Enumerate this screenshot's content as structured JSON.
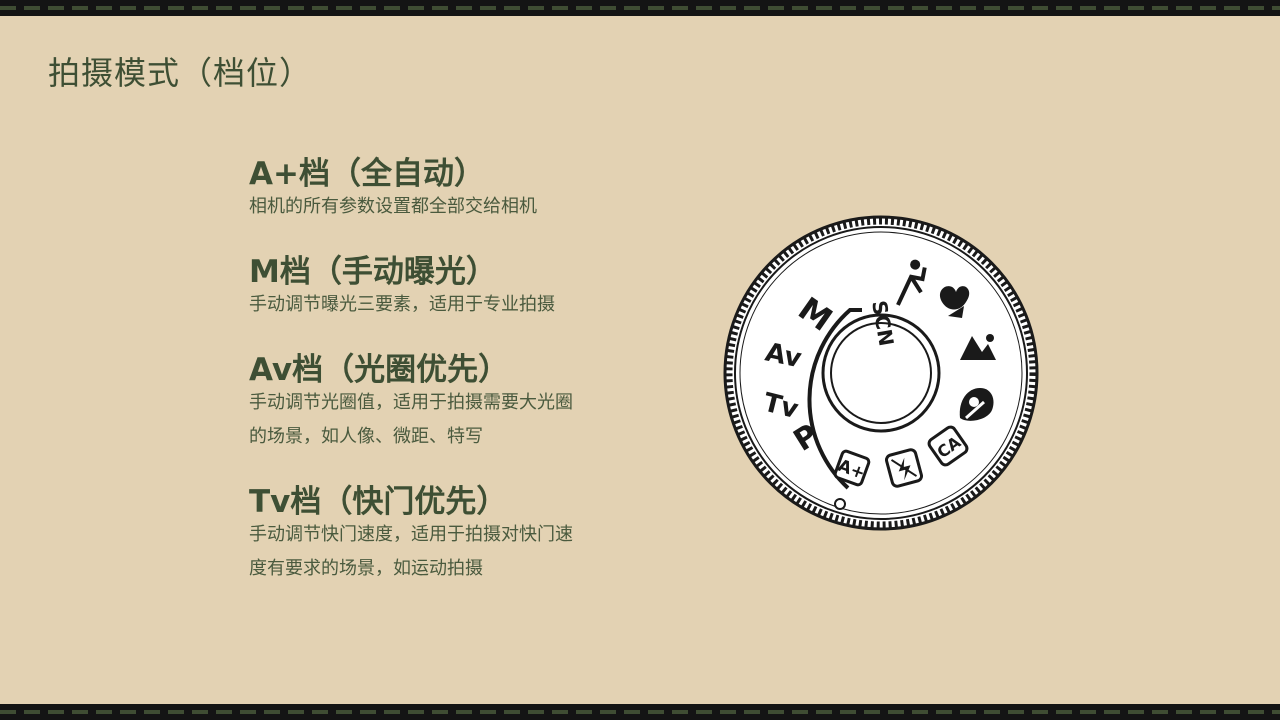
{
  "title": "拍摄模式（档位）",
  "modes": [
    {
      "name": "A+档（全自动）",
      "desc": "相机的所有参数设置都全部交给相机"
    },
    {
      "name": "M档（手动曝光）",
      "desc": "手动调节曝光三要素，适用于专业拍摄"
    },
    {
      "name": "Av档（光圈优先）",
      "desc": "手动调节光圈值，适用于拍摄需要大光圈的场景，如人像、微距、特写"
    },
    {
      "name": "Tv档（快门优先）",
      "desc": "手动调节快门速度，适用于拍摄对快门速度有要求的场景，如运动拍摄"
    }
  ],
  "dial": {
    "labels": {
      "p": "P",
      "tv": "Tv",
      "av": "Av",
      "m": "M",
      "scn": "SCN",
      "aplus": "A+",
      "ca": "CA"
    },
    "icons": [
      "sports-icon",
      "macro-flower-icon",
      "landscape-icon",
      "portrait-icon",
      "no-flash-icon",
      "creative-auto-icon",
      "scene-intelligent-auto-icon"
    ]
  },
  "colors": {
    "background": "#e3d2b3",
    "text": "#3e4f34",
    "border": "#141414",
    "perforation": "#3f4d33"
  }
}
